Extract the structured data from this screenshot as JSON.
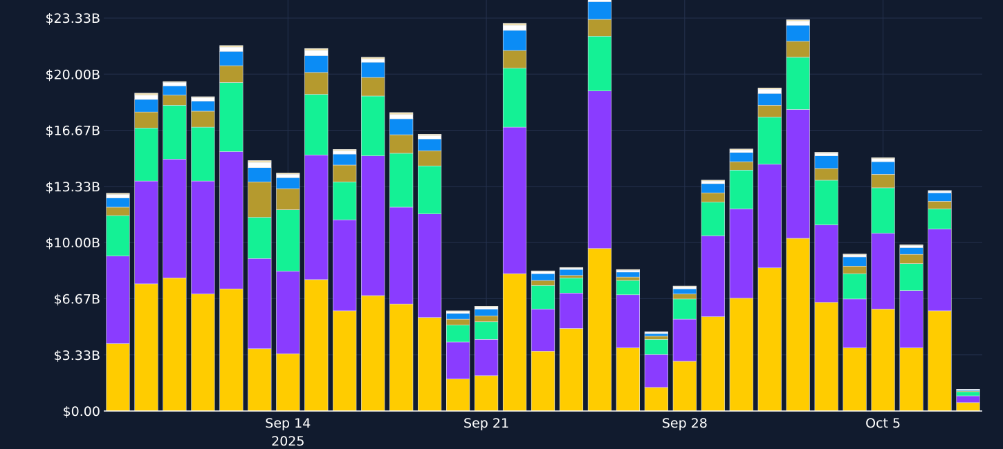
{
  "chart_data": {
    "type": "bar",
    "stacked": true,
    "grid": true,
    "yticks": [
      "$0.00",
      "$3.33B",
      "$6.67B",
      "$10.00B",
      "$13.33B",
      "$16.67B",
      "$20.00B",
      "$23.33B"
    ],
    "ytick_values": [
      0,
      3.33,
      6.67,
      10.0,
      13.33,
      16.67,
      20.0,
      23.33
    ],
    "ylim": [
      0,
      24.4
    ],
    "xticks": [
      {
        "date": "2025-09-14",
        "label": "Sep 14",
        "sublabel": "2025"
      },
      {
        "date": "2025-09-21",
        "label": "Sep 21",
        "sublabel": ""
      },
      {
        "date": "2025-09-28",
        "label": "Sep 28",
        "sublabel": ""
      },
      {
        "date": "2025-10-05",
        "label": "Oct 5",
        "sublabel": ""
      }
    ],
    "x": [
      "2025-09-08",
      "2025-09-09",
      "2025-09-10",
      "2025-09-11",
      "2025-09-12",
      "2025-09-13",
      "2025-09-14",
      "2025-09-15",
      "2025-09-16",
      "2025-09-17",
      "2025-09-18",
      "2025-09-19",
      "2025-09-20",
      "2025-09-21",
      "2025-09-22",
      "2025-09-23",
      "2025-09-24",
      "2025-09-25",
      "2025-09-26",
      "2025-09-27",
      "2025-09-28",
      "2025-09-29",
      "2025-09-30",
      "2025-10-01",
      "2025-10-02",
      "2025-10-03",
      "2025-10-04",
      "2025-10-05",
      "2025-10-06",
      "2025-10-07",
      "2025-10-08"
    ],
    "series": [
      {
        "color": "#ffcc00",
        "values": [
          4.0,
          7.55,
          7.9,
          6.95,
          7.25,
          3.7,
          3.4,
          7.8,
          5.95,
          6.85,
          6.35,
          5.55,
          1.9,
          2.1,
          8.15,
          3.55,
          4.9,
          9.65,
          3.75,
          1.4,
          2.95,
          5.6,
          6.7,
          8.5,
          10.25,
          6.45,
          3.75,
          6.05,
          3.75,
          5.95,
          0.5
        ]
      },
      {
        "color": "#8a3cff",
        "values": [
          5.2,
          6.1,
          7.05,
          6.7,
          8.15,
          5.35,
          4.9,
          7.4,
          5.4,
          8.3,
          5.75,
          6.15,
          2.2,
          2.15,
          8.7,
          2.5,
          2.1,
          9.35,
          3.15,
          1.95,
          2.5,
          4.8,
          5.3,
          6.15,
          7.65,
          4.6,
          2.9,
          4.5,
          3.4,
          4.85,
          0.4
        ]
      },
      {
        "color": "#14f195",
        "values": [
          2.4,
          3.15,
          3.2,
          3.2,
          4.1,
          2.45,
          3.65,
          3.6,
          2.25,
          3.55,
          3.2,
          2.85,
          1.0,
          1.05,
          3.5,
          1.4,
          0.9,
          3.25,
          0.85,
          0.9,
          1.2,
          2.0,
          2.3,
          2.8,
          3.1,
          2.65,
          1.5,
          2.7,
          1.6,
          1.2,
          0.25
        ]
      },
      {
        "color": "#b59a2e",
        "values": [
          0.5,
          0.95,
          0.6,
          0.95,
          1.0,
          2.1,
          1.25,
          1.3,
          1.0,
          1.1,
          1.1,
          0.9,
          0.35,
          0.35,
          1.05,
          0.3,
          0.15,
          1.0,
          0.2,
          0.2,
          0.3,
          0.55,
          0.5,
          0.7,
          0.95,
          0.7,
          0.45,
          0.8,
          0.55,
          0.45,
          0.05
        ]
      },
      {
        "color": "#0b8cf5",
        "values": [
          0.55,
          0.75,
          0.55,
          0.6,
          0.85,
          0.85,
          0.65,
          1.0,
          0.65,
          0.9,
          0.95,
          0.7,
          0.35,
          0.4,
          1.2,
          0.4,
          0.35,
          1.05,
          0.3,
          0.15,
          0.3,
          0.55,
          0.55,
          0.7,
          0.95,
          0.75,
          0.55,
          0.75,
          0.4,
          0.5,
          0.05
        ]
      },
      {
        "color": "#ffffff",
        "values": [
          0.2,
          0.25,
          0.2,
          0.2,
          0.25,
          0.3,
          0.2,
          0.3,
          0.2,
          0.2,
          0.25,
          0.2,
          0.1,
          0.12,
          0.3,
          0.12,
          0.08,
          0.35,
          0.1,
          0.08,
          0.12,
          0.15,
          0.15,
          0.25,
          0.25,
          0.15,
          0.12,
          0.18,
          0.12,
          0.1,
          0.03
        ]
      },
      {
        "color": "#f3e3b3",
        "values": [
          0.08,
          0.12,
          0.06,
          0.06,
          0.1,
          0.12,
          0.08,
          0.12,
          0.08,
          0.1,
          0.12,
          0.08,
          0.05,
          0.05,
          0.12,
          0.05,
          0.04,
          0.12,
          0.05,
          0.03,
          0.05,
          0.06,
          0.06,
          0.08,
          0.08,
          0.06,
          0.05,
          0.06,
          0.05,
          0.04,
          0.02
        ]
      }
    ]
  }
}
